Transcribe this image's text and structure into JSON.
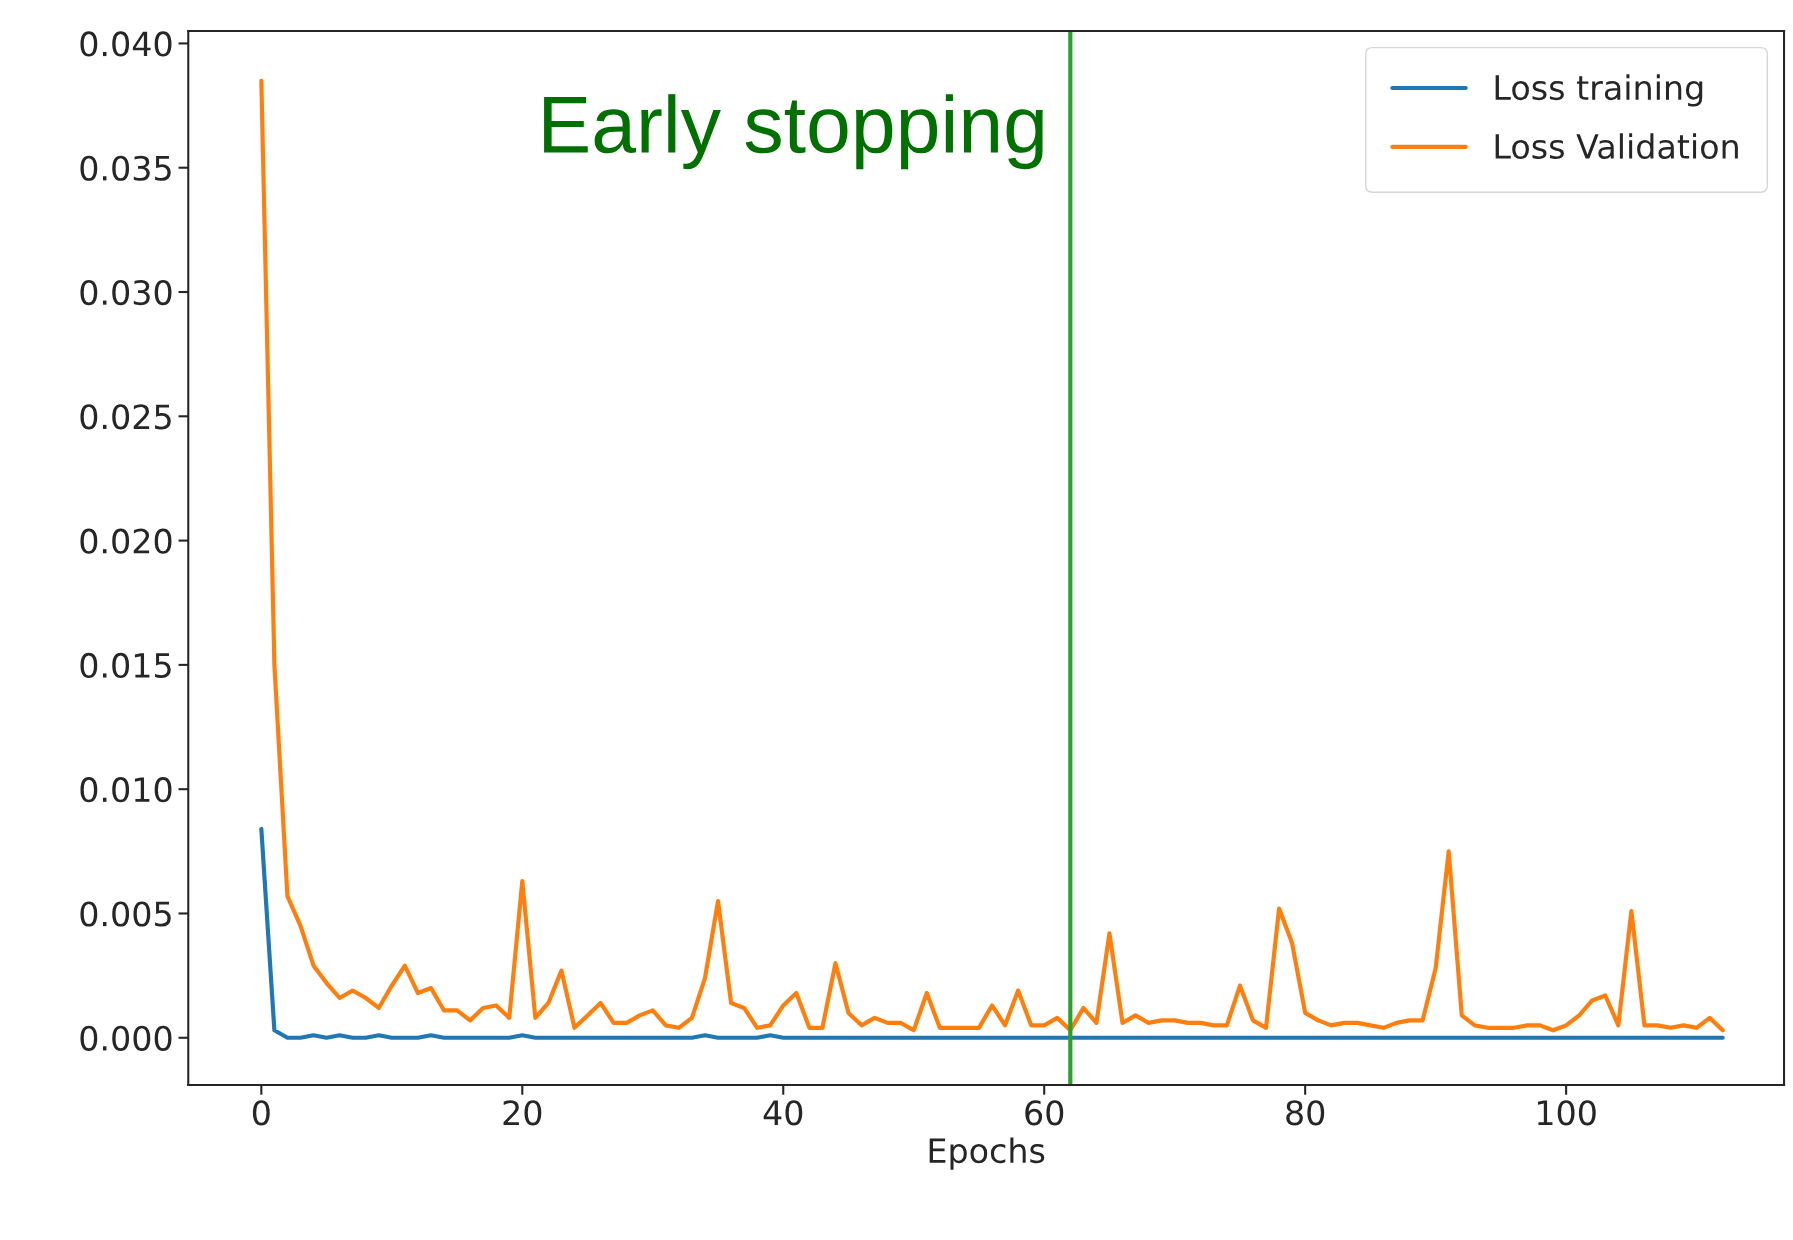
{
  "chart_data": {
    "type": "line",
    "xlabel": "Epochs",
    "x": [
      0,
      1,
      2,
      3,
      4,
      5,
      6,
      7,
      8,
      9,
      10,
      11,
      12,
      13,
      14,
      15,
      16,
      17,
      18,
      19,
      20,
      21,
      22,
      23,
      24,
      25,
      26,
      27,
      28,
      29,
      30,
      31,
      32,
      33,
      34,
      35,
      36,
      37,
      38,
      39,
      40,
      41,
      42,
      43,
      44,
      45,
      46,
      47,
      48,
      49,
      50,
      51,
      52,
      53,
      54,
      55,
      56,
      57,
      58,
      59,
      60,
      61,
      62,
      63,
      64,
      65,
      66,
      67,
      68,
      69,
      70,
      71,
      72,
      73,
      74,
      75,
      76,
      77,
      78,
      79,
      80,
      81,
      82,
      83,
      84,
      85,
      86,
      87,
      88,
      89,
      90,
      91,
      92,
      93,
      94,
      95,
      96,
      97,
      98,
      99,
      100,
      101,
      102,
      103,
      104,
      105,
      106,
      107,
      108,
      109,
      110,
      111,
      112
    ],
    "series": [
      {
        "name": "Loss training",
        "color": "#1f77b4",
        "values": [
          0.0084,
          0.0003,
          0,
          0,
          0.0001,
          0,
          0.0001,
          0,
          0,
          0.0001,
          0,
          0,
          0,
          0.0001,
          0,
          0,
          0,
          0,
          0,
          0,
          0.0001,
          0,
          0,
          0,
          0,
          0,
          0,
          0,
          0,
          0,
          0,
          0,
          0,
          0,
          0.0001,
          0,
          0,
          0,
          0,
          0.0001,
          0,
          0,
          0,
          0,
          0,
          0,
          0,
          0,
          0,
          0,
          0,
          0,
          0,
          0,
          0,
          0,
          0,
          0,
          0,
          0,
          0,
          0,
          0,
          0,
          0,
          0,
          0,
          0,
          0,
          0,
          0,
          0,
          0,
          0,
          0,
          0,
          0,
          0,
          0,
          0,
          0,
          0,
          0,
          0,
          0,
          0,
          0,
          0,
          0,
          0,
          0,
          0,
          0,
          0,
          0,
          0,
          0,
          0,
          0,
          0,
          0,
          0,
          0,
          0,
          0,
          0,
          0,
          0,
          0,
          0,
          0,
          0,
          0
        ]
      },
      {
        "name": "Loss Validation",
        "color": "#ff7f0e",
        "values": [
          0.0385,
          0.015,
          0.0057,
          0.0045,
          0.0029,
          0.0022,
          0.0016,
          0.0019,
          0.0016,
          0.0012,
          0.0021,
          0.0029,
          0.0018,
          0.002,
          0.0011,
          0.0011,
          0.0007,
          0.0012,
          0.0013,
          0.0008,
          0.0063,
          0.0008,
          0.0014,
          0.0027,
          0.0004,
          0.0009,
          0.0014,
          0.0006,
          0.0006,
          0.0009,
          0.0011,
          0.0005,
          0.0004,
          0.0008,
          0.0024,
          0.0055,
          0.0014,
          0.0012,
          0.0004,
          0.0005,
          0.0013,
          0.0018,
          0.0004,
          0.0004,
          0.003,
          0.001,
          0.0005,
          0.0008,
          0.0006,
          0.0006,
          0.0003,
          0.0018,
          0.0004,
          0.0004,
          0.0004,
          0.0004,
          0.0013,
          0.0005,
          0.0019,
          0.0005,
          0.0005,
          0.0008,
          0.0003,
          0.0012,
          0.0006,
          0.0042,
          0.0006,
          0.0009,
          0.0006,
          0.0007,
          0.0007,
          0.0006,
          0.0006,
          0.0005,
          0.0005,
          0.0021,
          0.0007,
          0.0004,
          0.0052,
          0.0038,
          0.001,
          0.0007,
          0.0005,
          0.0006,
          0.0006,
          0.0005,
          0.0004,
          0.0006,
          0.0007,
          0.0007,
          0.0028,
          0.0075,
          0.0009,
          0.0005,
          0.0004,
          0.0004,
          0.0004,
          0.0005,
          0.0005,
          0.0003,
          0.0005,
          0.0009,
          0.0015,
          0.0017,
          0.0005,
          0.0051,
          0.0005,
          0.0005,
          0.0004,
          0.0005,
          0.0004,
          0.0008,
          0.0003
        ]
      }
    ],
    "xlim": [
      -5.6,
      116.7
    ],
    "ylim": [
      -0.0019,
      0.0405
    ],
    "xticks": [
      0,
      20,
      40,
      60,
      80,
      100
    ],
    "yticks": [
      {
        "value": 0,
        "label": "0.000"
      },
      {
        "value": 0.005,
        "label": "0.005"
      },
      {
        "value": 0.01,
        "label": "0.010"
      },
      {
        "value": 0.015,
        "label": "0.015"
      },
      {
        "value": 0.02,
        "label": "0.020"
      },
      {
        "value": 0.025,
        "label": "0.025"
      },
      {
        "value": 0.03,
        "label": "0.030"
      },
      {
        "value": 0.035,
        "label": "0.035"
      },
      {
        "value": 0.04,
        "label": "0.040"
      }
    ],
    "ref_lines": [
      {
        "axis": "x",
        "value": 62,
        "label": "Early stopping",
        "color": "#2ca02c"
      }
    ],
    "grid": false,
    "legend": "top right",
    "marker": "none",
    "line_style": "solid"
  }
}
